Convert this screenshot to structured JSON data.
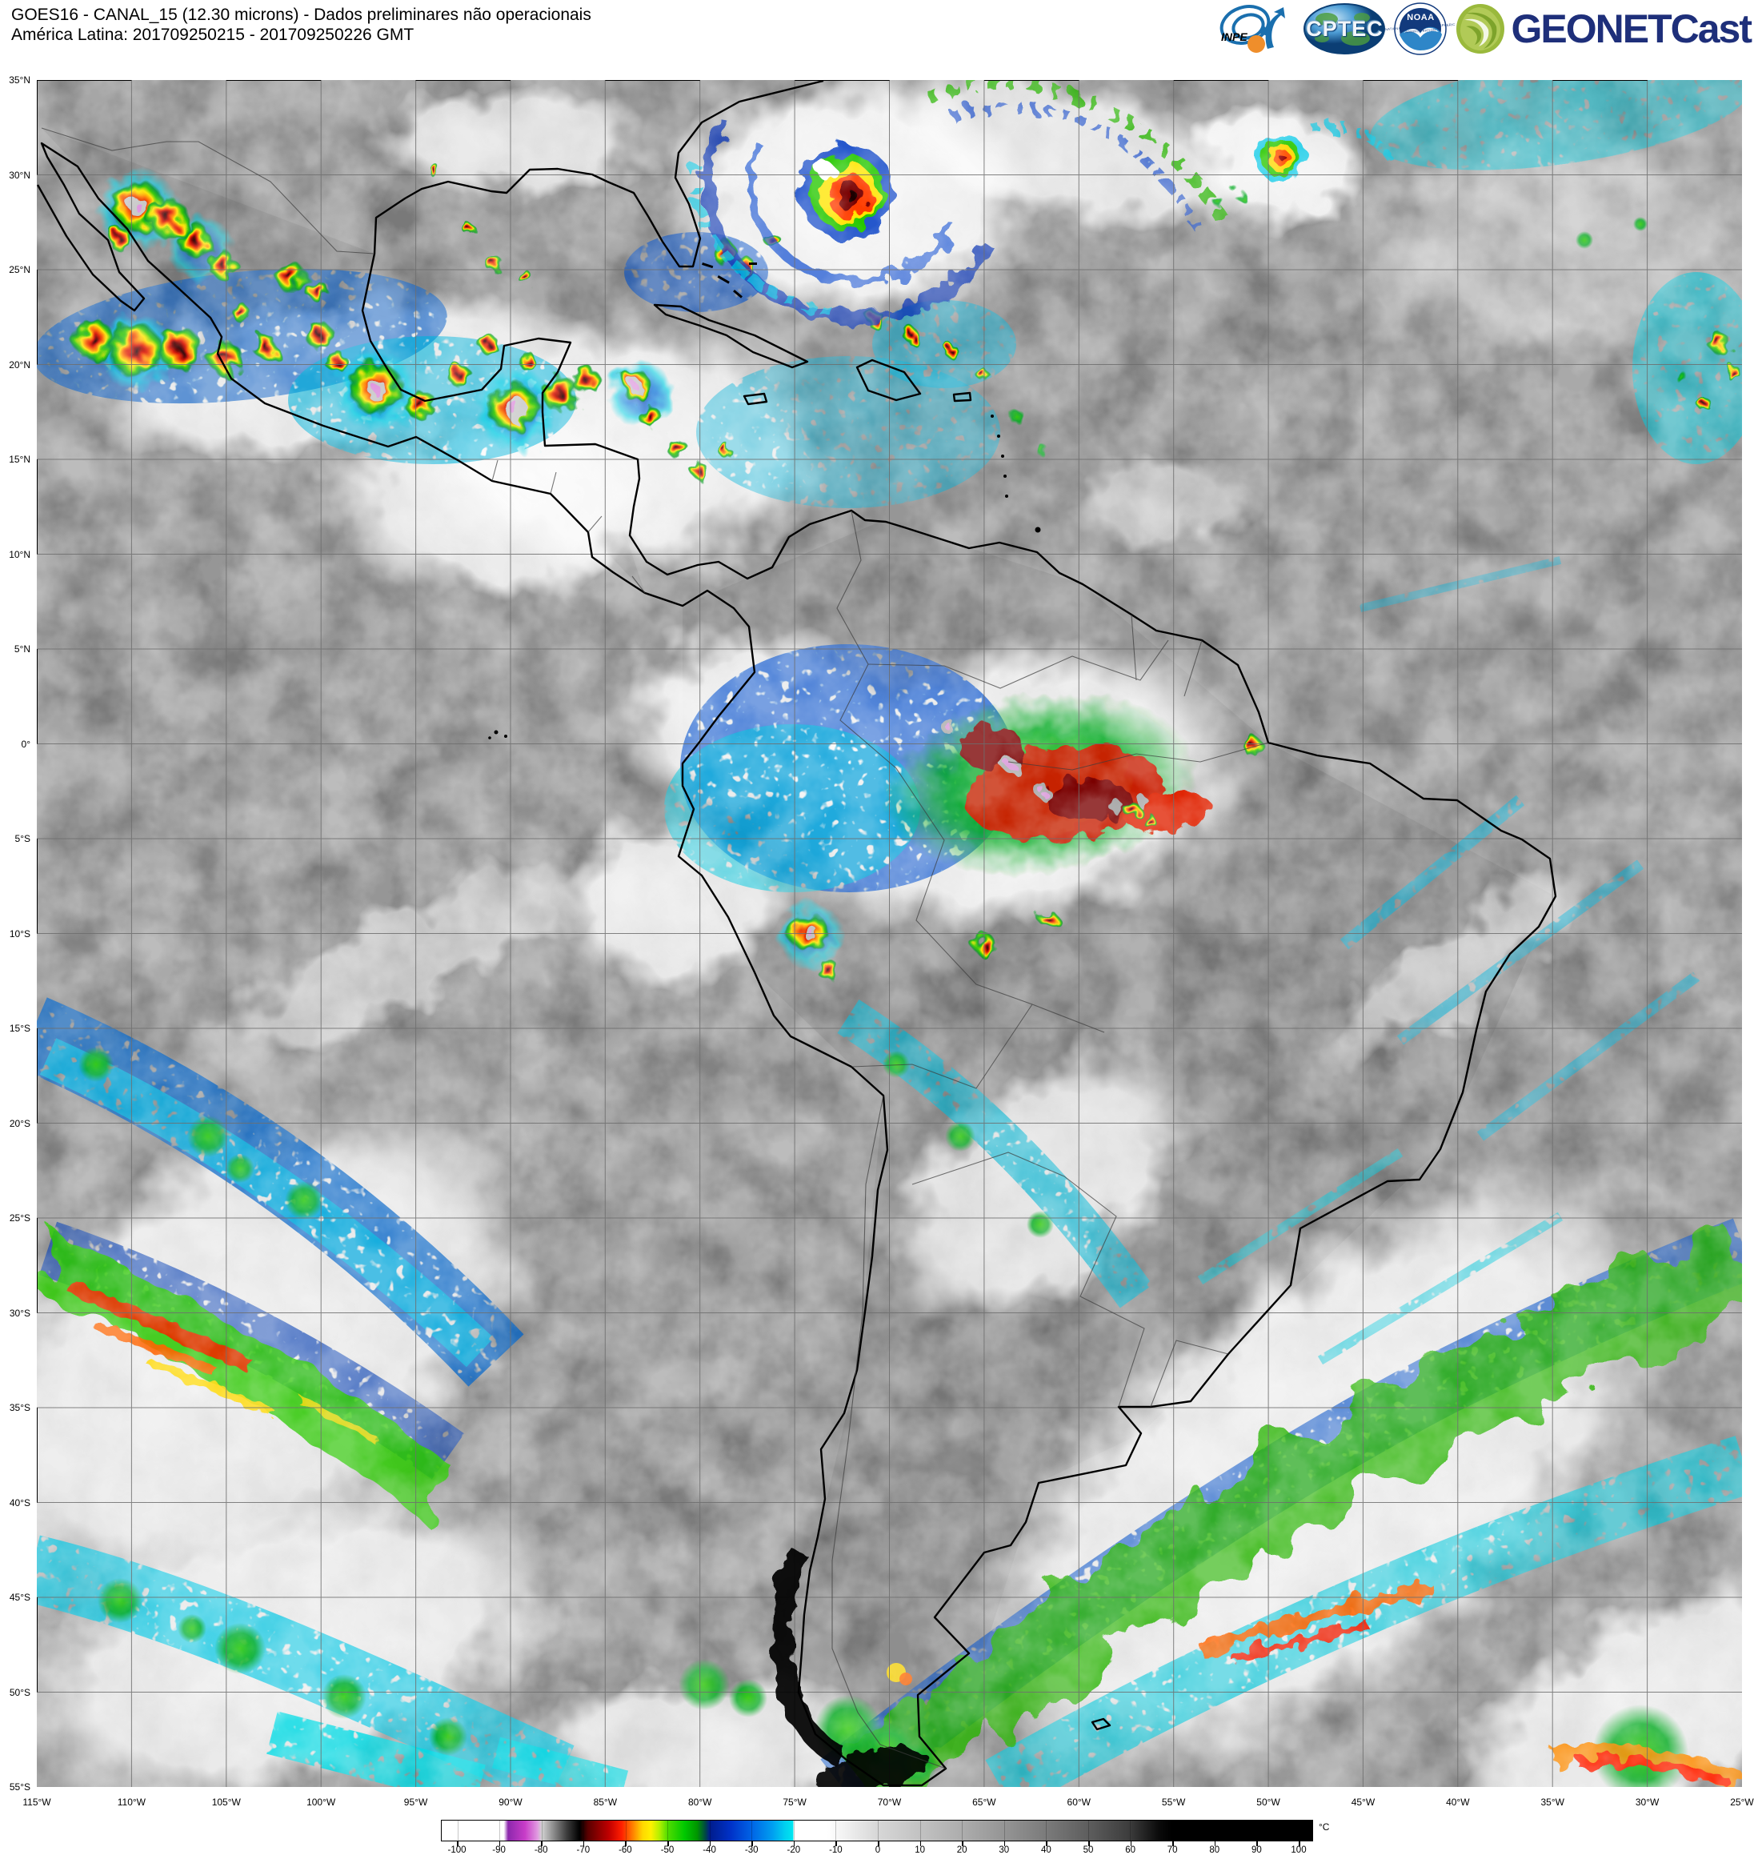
{
  "header": {
    "title_line1": "GOES16 - CANAL_15 (12.30 microns) - Dados preliminares não operacionais",
    "title_line2": "América Latina: 201709250215 - 201709250226 GMT"
  },
  "logos": {
    "inpe_label": "INPE",
    "cptec_label": "CPTEC",
    "noaa_label": "NOAA",
    "noaa_ring_text": "NATIONAL OCEANIC AND ATMOSPHERIC ADMINISTRATION",
    "geonetcast_label": "GEONETCast"
  },
  "map": {
    "lat_labels": [
      "35°N",
      "30°N",
      "25°N",
      "20°N",
      "15°N",
      "10°N",
      "5°N",
      "0°",
      "5°S",
      "10°S",
      "15°S",
      "20°S",
      "25°S",
      "30°S",
      "35°S",
      "40°S",
      "45°S",
      "50°S",
      "55°S"
    ],
    "lon_labels": [
      "115°W",
      "110°W",
      "105°W",
      "100°W",
      "95°W",
      "90°W",
      "85°W",
      "80°W",
      "75°W",
      "70°W",
      "65°W",
      "60°W",
      "55°W",
      "50°W",
      "45°W",
      "40°W",
      "35°W",
      "30°W",
      "25°W"
    ]
  },
  "colorbar": {
    "unit": "°C",
    "tick_values": [
      -100,
      -90,
      -80,
      -70,
      -60,
      -50,
      -40,
      -30,
      -20,
      -10,
      0,
      10,
      20,
      30,
      40,
      50,
      60,
      70,
      80,
      90,
      100
    ],
    "stops": [
      [
        -104,
        "#ffffff"
      ],
      [
        -89,
        "#ffffff"
      ],
      [
        -88,
        "#8d28ad"
      ],
      [
        -84,
        "#c83cc8"
      ],
      [
        -81,
        "#e09ae0"
      ],
      [
        -80,
        "#d2d2d2"
      ],
      [
        -74,
        "#3c3c3c"
      ],
      [
        -71,
        "#000000"
      ],
      [
        -69,
        "#5a0000"
      ],
      [
        -64,
        "#c00000"
      ],
      [
        -61,
        "#ff1e00"
      ],
      [
        -58,
        "#ff8c00"
      ],
      [
        -56,
        "#ffd800"
      ],
      [
        -54,
        "#fff000"
      ],
      [
        -52,
        "#b4f000"
      ],
      [
        -50,
        "#50dc00"
      ],
      [
        -46,
        "#00c800"
      ],
      [
        -43,
        "#009600"
      ],
      [
        -41,
        "#004646"
      ],
      [
        -40,
        "#001c8c"
      ],
      [
        -35,
        "#0032c8"
      ],
      [
        -30,
        "#0064e6"
      ],
      [
        -25,
        "#00a0f0"
      ],
      [
        -22,
        "#00d2f0"
      ],
      [
        -20.2,
        "#00e6f0"
      ],
      [
        -20,
        "#ffffff"
      ],
      [
        -12,
        "#ffffff"
      ],
      [
        0,
        "#d7d7d7"
      ],
      [
        10,
        "#c2c2c2"
      ],
      [
        20,
        "#adadad"
      ],
      [
        30,
        "#959595"
      ],
      [
        40,
        "#7b7b7b"
      ],
      [
        50,
        "#5e5e5e"
      ],
      [
        60,
        "#3c3c3c"
      ],
      [
        67,
        "#0a0a0a"
      ],
      [
        70,
        "#000000"
      ],
      [
        104,
        "#000000"
      ]
    ]
  }
}
